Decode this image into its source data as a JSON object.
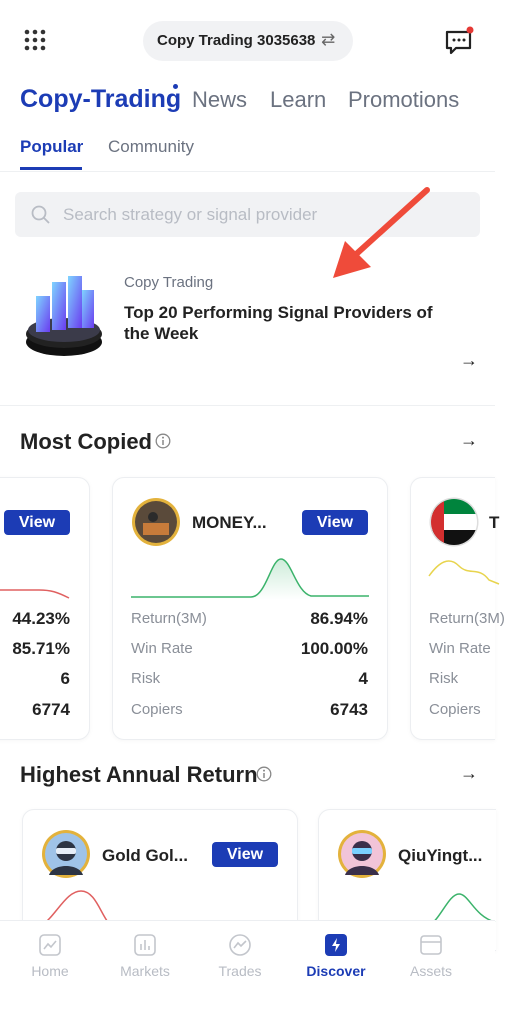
{
  "header": {
    "account": "Copy Trading 3035638"
  },
  "tabs": [
    "Copy-Trading",
    "News",
    "Learn",
    "Promotions"
  ],
  "subtabs": [
    "Popular",
    "Community"
  ],
  "search": {
    "placeholder": "Search strategy or signal provider"
  },
  "banner": {
    "label": "Copy Trading",
    "title": "Top 20 Performing Signal Providers of the Week"
  },
  "most_copied": {
    "title": "Most Copied",
    "cards": [
      {
        "button": "View",
        "stats": [
          "44.23%",
          "85.71%",
          "6",
          "6774"
        ]
      },
      {
        "name": "MONEY...",
        "button": "View",
        "stats": [
          {
            "label": "Return(3M)",
            "value": "86.94%"
          },
          {
            "label": "Win Rate",
            "value": "100.00%"
          },
          {
            "label": "Risk",
            "value": "4"
          },
          {
            "label": "Copiers",
            "value": "6743"
          }
        ]
      },
      {
        "name": "T",
        "stats": [
          "Return(3M)",
          "Win Rate",
          "Risk",
          "Copiers"
        ]
      }
    ]
  },
  "highest_annual_return": {
    "title": "Highest Annual Return",
    "cards": [
      {
        "name": "Gold Gol...",
        "button": "View"
      },
      {
        "name": "QiuYingt..."
      }
    ]
  },
  "nav": [
    "Home",
    "Markets",
    "Trades",
    "Discover",
    "Assets"
  ]
}
